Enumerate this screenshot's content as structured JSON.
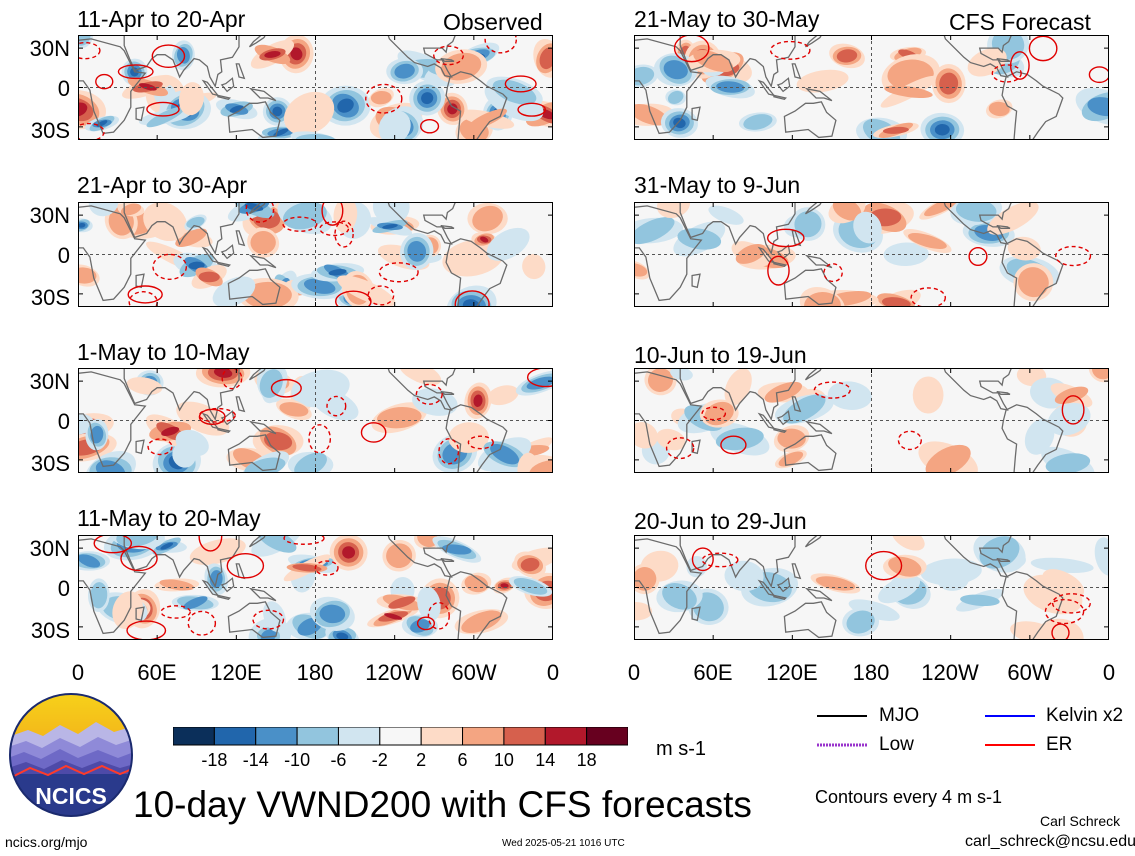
{
  "panels": [
    {
      "date": "11-Apr to 20-Apr",
      "tag": "Observed",
      "col": 0,
      "row": 0
    },
    {
      "date": "21-Apr to 30-Apr",
      "tag": "",
      "col": 0,
      "row": 1
    },
    {
      "date": "1-May to 10-May",
      "tag": "",
      "col": 0,
      "row": 2
    },
    {
      "date": "11-May to 20-May",
      "tag": "",
      "col": 0,
      "row": 3
    },
    {
      "date": "21-May to 30-May",
      "tag": "CFS Forecast",
      "col": 1,
      "row": 0
    },
    {
      "date": "31-May to 9-Jun",
      "tag": "",
      "col": 1,
      "row": 1
    },
    {
      "date": "10-Jun to 19-Jun",
      "tag": "",
      "col": 1,
      "row": 2
    },
    {
      "date": "20-Jun to 29-Jun",
      "tag": "",
      "col": 1,
      "row": 3
    }
  ],
  "y_ticks": [
    "30N",
    "0",
    "30S"
  ],
  "x_ticks": [
    "0",
    "60E",
    "120E",
    "180",
    "120W",
    "60W",
    "0"
  ],
  "colorbar": {
    "labels": [
      "-18",
      "-14",
      "-10",
      "-6",
      "-2",
      "2",
      "6",
      "10",
      "14",
      "18"
    ],
    "colors": [
      "#0b2f5a",
      "#2166ac",
      "#4a90c8",
      "#92c5de",
      "#d1e5f0",
      "#f7f7f7",
      "#fddbc7",
      "#f4a582",
      "#d6604d",
      "#b2182b",
      "#67001f"
    ],
    "units": "m s-1"
  },
  "legend": [
    {
      "label": "MJO",
      "color": "#000000"
    },
    {
      "label": "Kelvin x2",
      "color": "#0000ff"
    },
    {
      "label": "Low",
      "color": "#9933cc"
    },
    {
      "label": "ER",
      "color": "#ff0000"
    }
  ],
  "contour_note": "Contours every 4 m s-1",
  "main_title": "10-day VWND200 with CFS forecasts",
  "logo_text": "NCICS",
  "site": "ncics.org/mjo",
  "timestamp": "Wed 2025-05-21 1016 UTC",
  "author": "Carl Schreck",
  "email": "carl_schreck@ncsu.edu"
}
